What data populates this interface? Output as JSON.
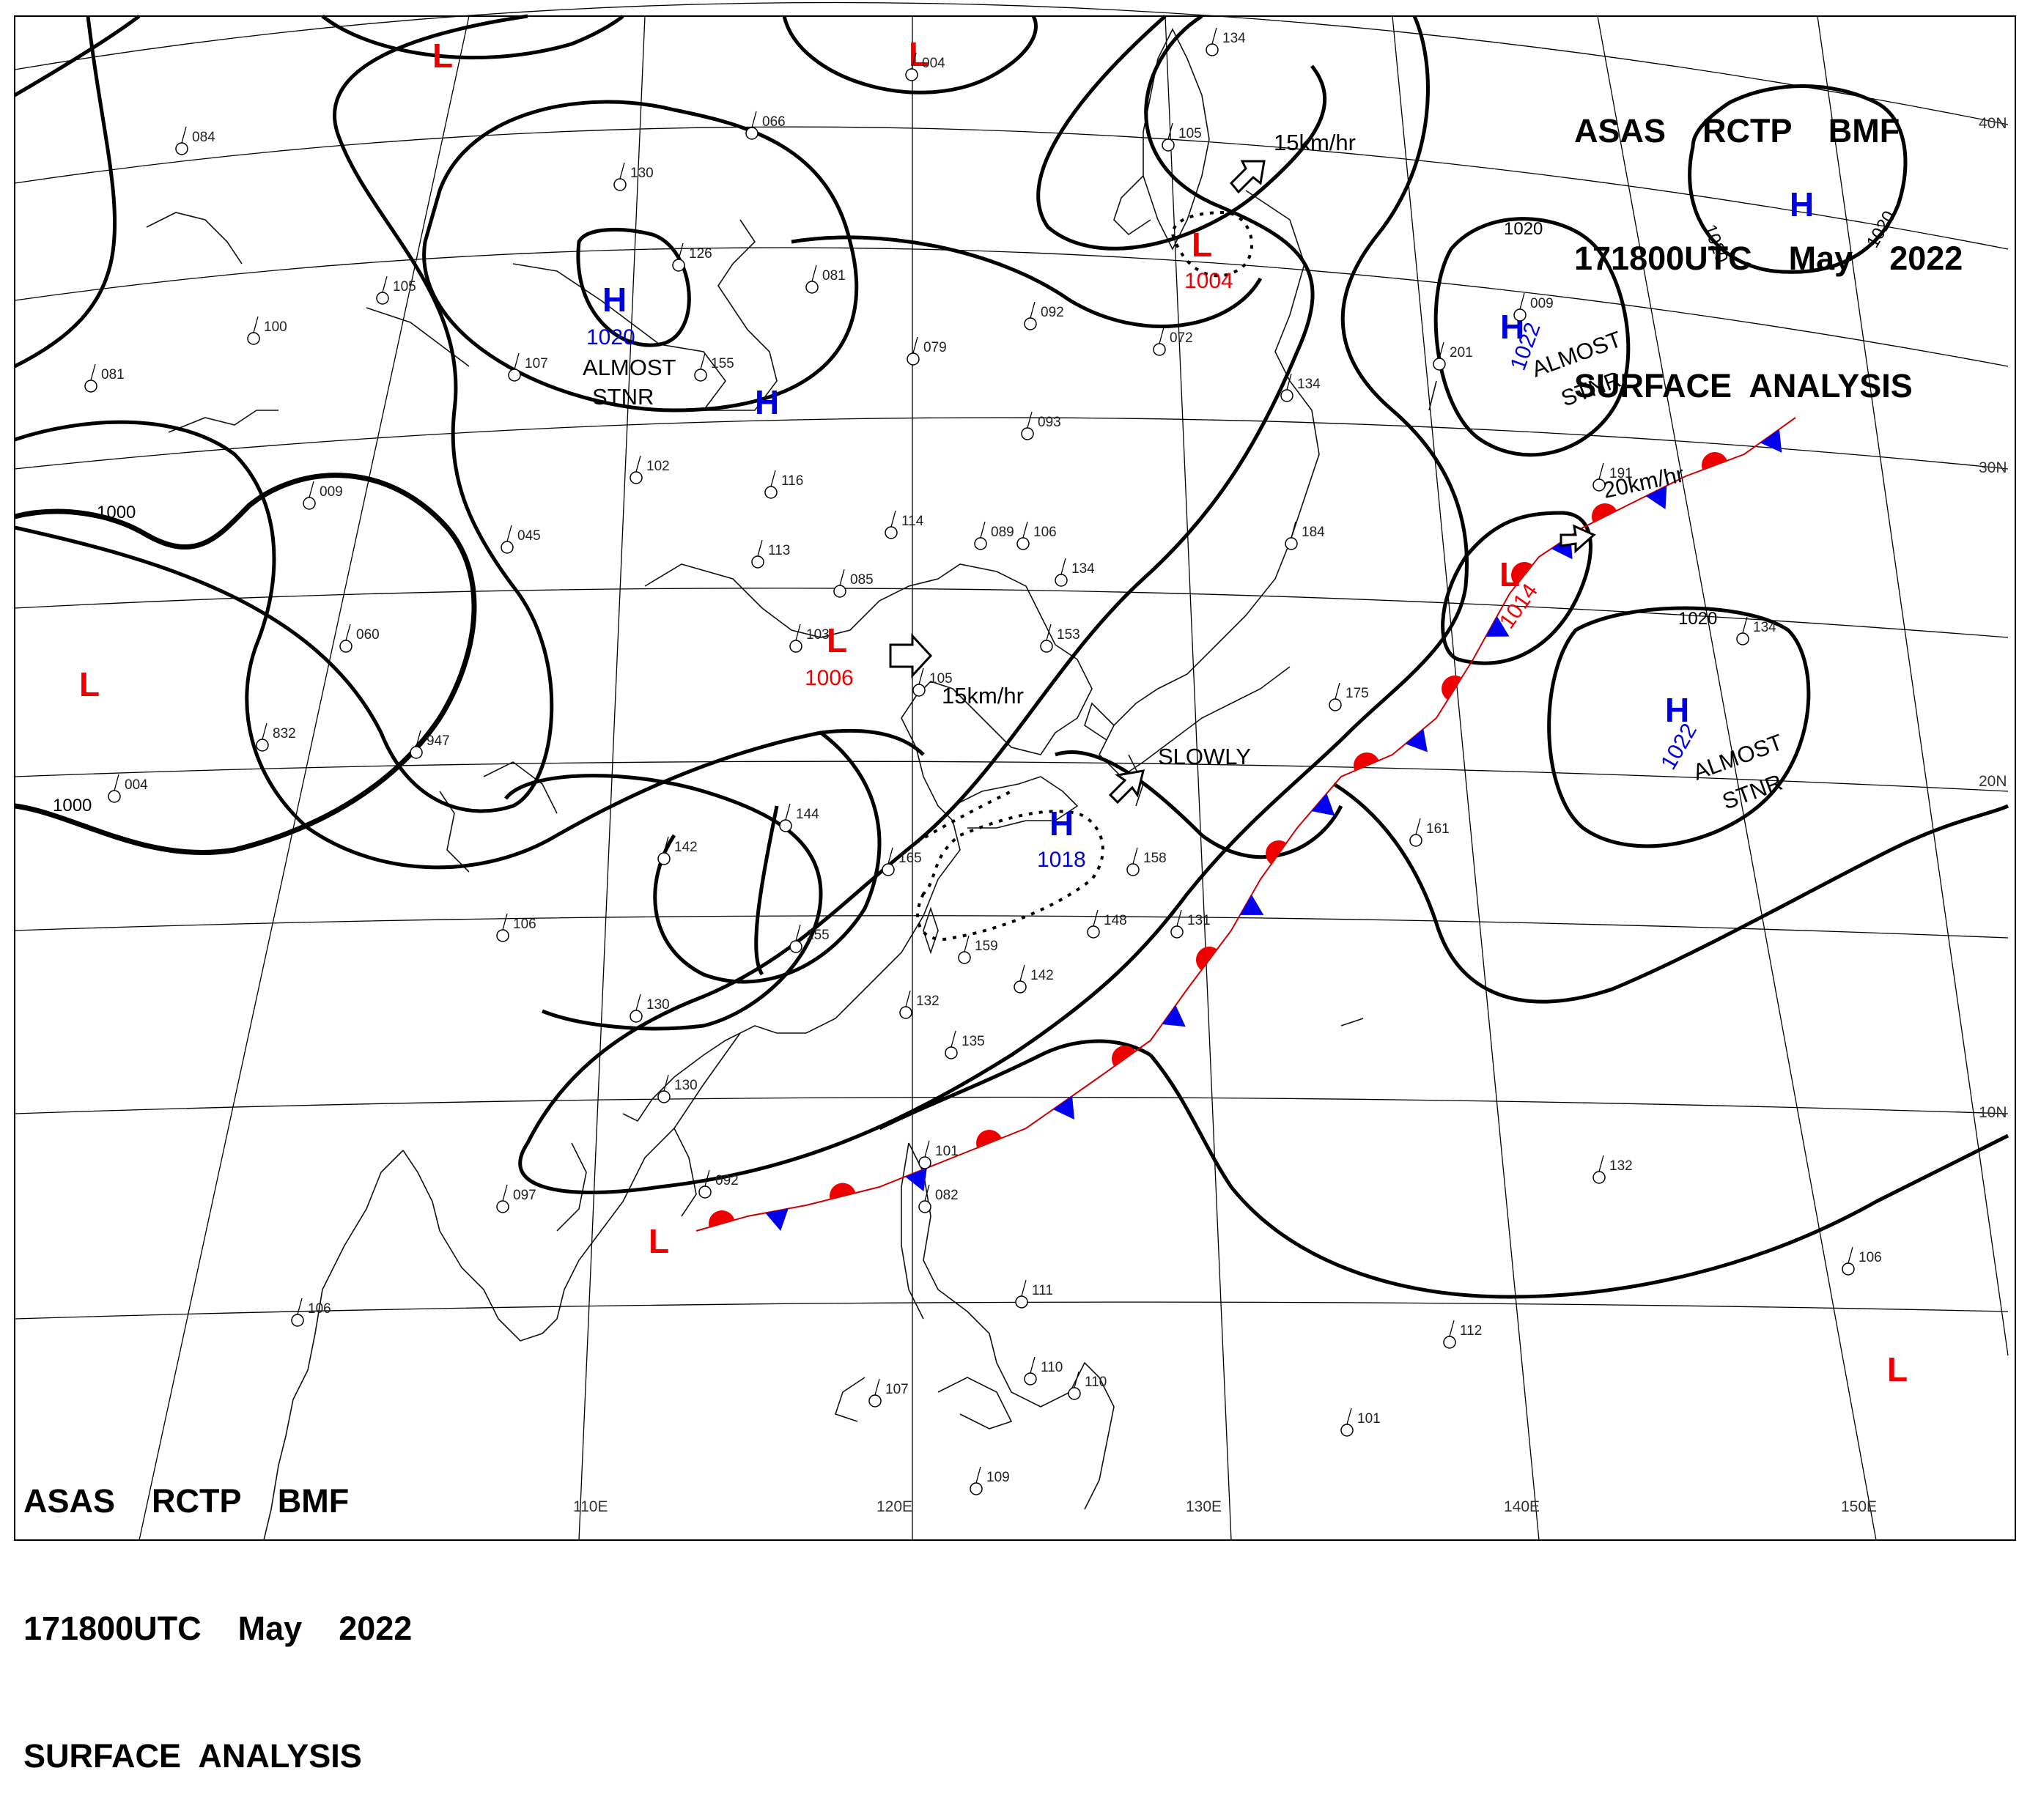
{
  "header": {
    "lines": [
      "ASAS    RCTP    BMF",
      "171800UTC    May    2022",
      "SURFACE  ANALYSIS"
    ]
  },
  "footer": {
    "lines": [
      "ASAS    RCTP    BMF",
      "171800UTC    May    2022",
      "SURFACE  ANALYSIS"
    ]
  },
  "axes": {
    "lon": [
      "110E",
      "120E",
      "130E",
      "140E",
      "150E"
    ],
    "lat": [
      "40N",
      "30N",
      "20N",
      "10N"
    ]
  },
  "isobar_labels": {
    "i1000_west": "1000",
    "i1000_sw": "1000",
    "i1020_ne": "1020",
    "i1020_e1": "1020",
    "i1020_e2": "1020",
    "i1020_se": "1020"
  },
  "pressure_systems": [
    {
      "type": "H",
      "value": "1020"
    },
    {
      "type": "H",
      "value": ""
    },
    {
      "type": "H",
      "value": "1018"
    },
    {
      "type": "H",
      "value": "1022"
    },
    {
      "type": "H",
      "value": "1022"
    },
    {
      "type": "H",
      "value": ""
    },
    {
      "type": "L",
      "value": "1004"
    },
    {
      "type": "L",
      "value": "1006"
    },
    {
      "type": "L",
      "value": "1014"
    },
    {
      "type": "L",
      "value": ""
    },
    {
      "type": "L",
      "value": ""
    },
    {
      "type": "L",
      "value": ""
    },
    {
      "type": "L",
      "value": ""
    },
    {
      "type": "L",
      "value": ""
    }
  ],
  "motion_notes": {
    "m1": "15km/hr",
    "m2": "15km/hr",
    "m3": "20km/hr",
    "m4": "SLOWLY"
  },
  "stationary_notes": {
    "s1a": "ALMOST",
    "s1b": "STNR",
    "s2a": "ALMOST",
    "s2b": "STNR",
    "s3a": "ALMOST",
    "s3b": "STNR"
  },
  "stations": {
    "p1": "084",
    "p2": "105",
    "p3": "081",
    "p4": "130",
    "p5": "100",
    "p6": "126",
    "p7": "066",
    "p8": "004",
    "p9": "134",
    "p10": "105",
    "p11": "092",
    "p12": "079",
    "p13": "072",
    "p14": "093",
    "p15": "107",
    "p16": "102",
    "p17": "116",
    "p18": "114",
    "p19": "089",
    "p20": "113",
    "p21": "085",
    "p22": "103",
    "p23": "060",
    "p24": "045",
    "p25": "009",
    "p26": "134",
    "p27": "153",
    "p28": "105",
    "p29": "175",
    "p30": "184",
    "p31": "134",
    "p32": "144",
    "p33": "142",
    "p34": "165",
    "p35": "155",
    "p36": "159",
    "p37": "158",
    "p38": "148",
    "p39": "131",
    "p40": "142",
    "p41": "132",
    "p42": "135",
    "p43": "832",
    "p44": "947",
    "p45": "004",
    "p46": "106",
    "p47": "130",
    "p48": "130",
    "p49": "097",
    "p50": "092",
    "p51": "101",
    "p52": "082",
    "p53": "106",
    "p54": "111",
    "p55": "110",
    "p56": "110",
    "p57": "107",
    "p58": "109",
    "p59": "106",
    "p60": "191",
    "p61": "161",
    "p62": "132",
    "p63": "112",
    "p64": "101",
    "p65": "106",
    "p66": "009",
    "p67": "201",
    "p68": "155",
    "p69": "081",
    "p70": "134"
  },
  "colors": {
    "high": "#0000dd",
    "low": "#ee0000",
    "warm_front": "#ee0000",
    "cold_front": "#0000ee"
  }
}
